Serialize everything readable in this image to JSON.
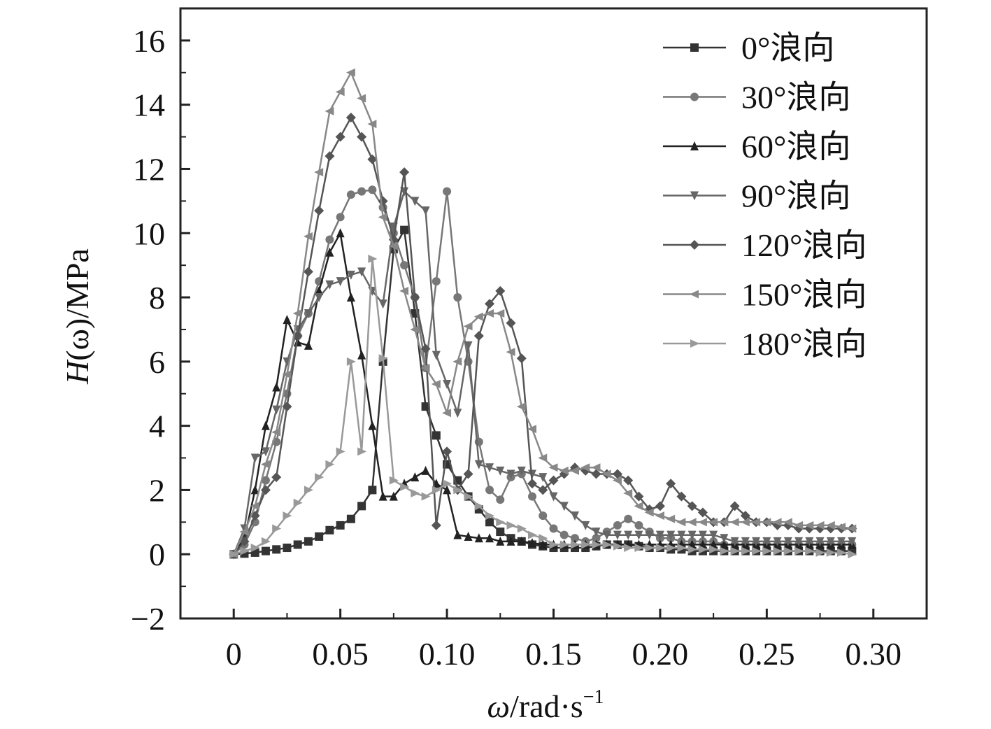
{
  "chart_data": {
    "type": "line",
    "title": "",
    "xlabel": {
      "symbol": "ω",
      "unit": "/rad·s",
      "exponent": "−1"
    },
    "ylabel": {
      "symbol": "H",
      "arg": "(ω)",
      "unit": "/MPa"
    },
    "xlim": [
      -0.025,
      0.325
    ],
    "ylim": [
      -2,
      17
    ],
    "xticks": [
      0,
      0.05,
      0.1,
      0.15,
      0.2,
      0.25,
      0.3
    ],
    "xtick_labels": [
      "0",
      "0.05",
      "0.10",
      "0.15",
      "0.20",
      "0.25",
      "0.30"
    ],
    "yticks": [
      -2,
      0,
      2,
      4,
      6,
      8,
      10,
      12,
      14,
      16
    ],
    "ytick_labels": [
      "−2",
      "0",
      "2",
      "4",
      "6",
      "8",
      "10",
      "12",
      "14",
      "16"
    ],
    "grid": false,
    "legend_position": "top-right",
    "series": [
      {
        "name": "0°浪向",
        "marker": "square",
        "color": "#333333",
        "x": [
          0,
          0.005,
          0.01,
          0.015,
          0.02,
          0.025,
          0.03,
          0.035,
          0.04,
          0.045,
          0.05,
          0.055,
          0.06,
          0.065,
          0.07,
          0.075,
          0.08,
          0.085,
          0.09,
          0.095,
          0.1,
          0.105,
          0.11,
          0.115,
          0.12,
          0.125,
          0.13,
          0.135,
          0.14,
          0.145,
          0.15,
          0.155,
          0.16,
          0.165,
          0.17,
          0.175,
          0.18,
          0.185,
          0.19,
          0.195,
          0.2,
          0.205,
          0.21,
          0.215,
          0.22,
          0.225,
          0.23,
          0.235,
          0.24,
          0.245,
          0.25,
          0.255,
          0.26,
          0.265,
          0.27,
          0.275,
          0.28,
          0.285,
          0.29
        ],
        "y": [
          0,
          0.02,
          0.05,
          0.1,
          0.15,
          0.2,
          0.3,
          0.4,
          0.55,
          0.75,
          0.9,
          1.1,
          1.5,
          2.0,
          6.0,
          9.5,
          10.1,
          7.5,
          4.6,
          3.7,
          2.8,
          2.3,
          1.8,
          1.4,
          1.0,
          0.7,
          0.5,
          0.4,
          0.3,
          0.25,
          0.2,
          0.2,
          0.2,
          0.2,
          0.25,
          0.3,
          0.3,
          0.3,
          0.25,
          0.2,
          0.2,
          0.15,
          0.15,
          0.1,
          0.1,
          0.1,
          0.1,
          0.1,
          0.1,
          0.1,
          0.1,
          0.1,
          0.1,
          0.1,
          0.1,
          0.1,
          0.1,
          0.1,
          0.1
        ]
      },
      {
        "name": "30°浪向",
        "marker": "circle",
        "color": "#777777",
        "x": [
          0,
          0.005,
          0.01,
          0.015,
          0.02,
          0.025,
          0.03,
          0.035,
          0.04,
          0.045,
          0.05,
          0.055,
          0.06,
          0.065,
          0.07,
          0.075,
          0.08,
          0.085,
          0.09,
          0.095,
          0.1,
          0.105,
          0.11,
          0.115,
          0.12,
          0.125,
          0.13,
          0.135,
          0.14,
          0.145,
          0.15,
          0.155,
          0.16,
          0.165,
          0.17,
          0.175,
          0.18,
          0.185,
          0.19,
          0.195,
          0.2,
          0.205,
          0.21,
          0.215,
          0.22,
          0.225,
          0.23,
          0.235,
          0.24,
          0.245,
          0.25,
          0.255,
          0.26,
          0.265,
          0.27,
          0.275,
          0.28,
          0.285,
          0.29
        ],
        "y": [
          0,
          0.3,
          1.0,
          2.3,
          3.5,
          5.0,
          6.8,
          7.5,
          8.5,
          9.8,
          10.5,
          11.2,
          11.3,
          11.35,
          10.8,
          10.0,
          9.0,
          8.0,
          5.8,
          8.5,
          11.3,
          8.0,
          6.0,
          3.5,
          2.0,
          1.7,
          2.4,
          2.5,
          1.8,
          1.2,
          0.8,
          0.6,
          0.5,
          0.4,
          0.5,
          0.7,
          0.9,
          1.1,
          0.9,
          0.7,
          0.5,
          0.5,
          0.4,
          0.4,
          0.4,
          0.4,
          0.3,
          0.3,
          0.3,
          0.3,
          0.3,
          0.3,
          0.3,
          0.3,
          0.3,
          0.3,
          0.3,
          0.3,
          0.3
        ]
      },
      {
        "name": "60°浪向",
        "marker": "triangle-up",
        "color": "#222222",
        "x": [
          0,
          0.005,
          0.01,
          0.015,
          0.02,
          0.025,
          0.03,
          0.035,
          0.04,
          0.045,
          0.05,
          0.055,
          0.06,
          0.065,
          0.07,
          0.075,
          0.08,
          0.085,
          0.09,
          0.095,
          0.1,
          0.105,
          0.11,
          0.115,
          0.12,
          0.125,
          0.13,
          0.135,
          0.14,
          0.145,
          0.15,
          0.155,
          0.16,
          0.165,
          0.17,
          0.175,
          0.18,
          0.185,
          0.19,
          0.195,
          0.2,
          0.205,
          0.21,
          0.215,
          0.22,
          0.225,
          0.23,
          0.235,
          0.24,
          0.245,
          0.25,
          0.255,
          0.26,
          0.265,
          0.27,
          0.275,
          0.28,
          0.285,
          0.29
        ],
        "y": [
          0,
          0.5,
          2.0,
          4.0,
          5.2,
          7.3,
          6.6,
          6.5,
          8.2,
          9.4,
          10.0,
          8.0,
          6.2,
          4.0,
          1.8,
          1.8,
          2.2,
          2.4,
          2.6,
          2.2,
          2.0,
          0.6,
          0.55,
          0.5,
          0.5,
          0.4,
          0.4,
          0.4,
          0.35,
          0.3,
          0.3,
          0.3,
          0.3,
          0.3,
          0.3,
          0.3,
          0.3,
          0.3,
          0.3,
          0.3,
          0.3,
          0.3,
          0.3,
          0.3,
          0.3,
          0.3,
          0.3,
          0.3,
          0.3,
          0.3,
          0.3,
          0.3,
          0.3,
          0.3,
          0.3,
          0.3,
          0.3,
          0.3,
          0.3
        ]
      },
      {
        "name": "90°浪向",
        "marker": "triangle-down",
        "color": "#666666",
        "x": [
          0,
          0.005,
          0.01,
          0.015,
          0.02,
          0.025,
          0.03,
          0.035,
          0.04,
          0.045,
          0.05,
          0.055,
          0.06,
          0.065,
          0.07,
          0.075,
          0.08,
          0.085,
          0.09,
          0.095,
          0.1,
          0.105,
          0.11,
          0.115,
          0.12,
          0.125,
          0.13,
          0.135,
          0.14,
          0.145,
          0.15,
          0.155,
          0.16,
          0.165,
          0.17,
          0.175,
          0.18,
          0.185,
          0.19,
          0.195,
          0.2,
          0.205,
          0.21,
          0.215,
          0.22,
          0.225,
          0.23,
          0.235,
          0.24,
          0.245,
          0.25,
          0.255,
          0.26,
          0.265,
          0.27,
          0.275,
          0.28,
          0.285,
          0.29
        ],
        "y": [
          0,
          0.8,
          3.0,
          3.2,
          4.5,
          6.0,
          7.0,
          7.5,
          8.0,
          8.4,
          8.5,
          8.7,
          8.8,
          8.2,
          7.8,
          10.2,
          11.3,
          11.0,
          10.7,
          6.2,
          5.3,
          4.4,
          6.5,
          2.8,
          2.7,
          2.6,
          2.5,
          2.6,
          2.5,
          2.4,
          1.8,
          1.5,
          1.2,
          0.9,
          0.7,
          0.6,
          0.6,
          0.6,
          0.6,
          0.6,
          0.6,
          0.6,
          0.6,
          0.6,
          0.6,
          0.6,
          0.5,
          0.4,
          0.4,
          0.4,
          0.4,
          0.4,
          0.4,
          0.4,
          0.4,
          0.4,
          0.4,
          0.4,
          0.4
        ]
      },
      {
        "name": "120°浪向",
        "marker": "diamond",
        "color": "#555555",
        "x": [
          0,
          0.005,
          0.01,
          0.015,
          0.02,
          0.025,
          0.03,
          0.035,
          0.04,
          0.045,
          0.05,
          0.055,
          0.06,
          0.065,
          0.07,
          0.075,
          0.08,
          0.085,
          0.09,
          0.095,
          0.1,
          0.105,
          0.11,
          0.115,
          0.12,
          0.125,
          0.13,
          0.135,
          0.14,
          0.145,
          0.15,
          0.155,
          0.16,
          0.165,
          0.17,
          0.175,
          0.18,
          0.185,
          0.19,
          0.195,
          0.2,
          0.205,
          0.21,
          0.215,
          0.22,
          0.225,
          0.23,
          0.235,
          0.24,
          0.245,
          0.25,
          0.255,
          0.26,
          0.265,
          0.27,
          0.275,
          0.28,
          0.285,
          0.29
        ],
        "y": [
          0,
          0.4,
          1.2,
          2.0,
          2.4,
          4.6,
          6.8,
          8.8,
          10.7,
          12.4,
          13.0,
          13.6,
          13.0,
          12.3,
          11.0,
          9.8,
          11.9,
          8.0,
          6.4,
          0.9,
          3.2,
          2.0,
          2.5,
          6.8,
          7.8,
          8.2,
          7.2,
          6.1,
          2.2,
          2.0,
          2.3,
          2.5,
          2.7,
          2.6,
          2.5,
          2.5,
          2.5,
          2.3,
          1.8,
          1.4,
          1.5,
          2.2,
          1.8,
          1.5,
          1.3,
          1.0,
          1.0,
          1.5,
          1.2,
          1.0,
          1.0,
          0.9,
          0.9,
          0.8,
          0.8,
          0.8,
          0.8,
          0.8,
          0.8
        ]
      },
      {
        "name": "150°浪向",
        "marker": "triangle-left",
        "color": "#888888",
        "x": [
          0,
          0.005,
          0.01,
          0.015,
          0.02,
          0.025,
          0.03,
          0.035,
          0.04,
          0.045,
          0.05,
          0.055,
          0.06,
          0.065,
          0.07,
          0.075,
          0.08,
          0.085,
          0.09,
          0.095,
          0.1,
          0.105,
          0.11,
          0.115,
          0.12,
          0.125,
          0.13,
          0.135,
          0.14,
          0.145,
          0.15,
          0.155,
          0.16,
          0.165,
          0.17,
          0.175,
          0.18,
          0.185,
          0.19,
          0.195,
          0.2,
          0.205,
          0.21,
          0.215,
          0.22,
          0.225,
          0.23,
          0.235,
          0.24,
          0.245,
          0.25,
          0.255,
          0.26,
          0.265,
          0.27,
          0.275,
          0.28,
          0.285,
          0.29
        ],
        "y": [
          0,
          0.7,
          1.5,
          2.8,
          3.8,
          5.6,
          7.5,
          9.9,
          11.9,
          13.8,
          14.4,
          15.0,
          14.2,
          13.4,
          10.5,
          9.6,
          8.2,
          7.0,
          5.8,
          5.3,
          4.4,
          6.0,
          7.1,
          7.4,
          7.5,
          7.5,
          6.3,
          4.6,
          3.9,
          3.0,
          2.7,
          2.6,
          2.6,
          2.7,
          2.7,
          2.5,
          2.3,
          1.9,
          1.5,
          1.3,
          1.2,
          1.1,
          1.0,
          1.0,
          1.0,
          1.0,
          1.0,
          1.0,
          1.0,
          1.0,
          1.0,
          1.0,
          1.0,
          0.9,
          0.9,
          0.9,
          0.9,
          0.85,
          0.8
        ]
      },
      {
        "name": "180°浪向",
        "marker": "triangle-right",
        "color": "#999999",
        "x": [
          0,
          0.005,
          0.01,
          0.015,
          0.02,
          0.025,
          0.03,
          0.035,
          0.04,
          0.045,
          0.05,
          0.055,
          0.06,
          0.065,
          0.07,
          0.075,
          0.08,
          0.085,
          0.09,
          0.095,
          0.1,
          0.105,
          0.11,
          0.115,
          0.12,
          0.125,
          0.13,
          0.135,
          0.14,
          0.145,
          0.15,
          0.155,
          0.16,
          0.165,
          0.17,
          0.175,
          0.18,
          0.185,
          0.19,
          0.195,
          0.2,
          0.205,
          0.21,
          0.215,
          0.22,
          0.225,
          0.23,
          0.235,
          0.24,
          0.245,
          0.25,
          0.255,
          0.26,
          0.265,
          0.27,
          0.275,
          0.28,
          0.285,
          0.29
        ],
        "y": [
          0,
          0.1,
          0.2,
          0.4,
          0.8,
          1.2,
          1.6,
          2.0,
          2.4,
          2.8,
          3.2,
          6.0,
          3.2,
          9.2,
          6.1,
          2.3,
          2.1,
          1.9,
          1.8,
          2.0,
          2.2,
          2.0,
          1.8,
          1.5,
          1.2,
          1.0,
          0.9,
          0.8,
          0.6,
          0.5,
          0.3,
          0.3,
          0.3,
          0.3,
          0.3,
          0.3,
          0.25,
          0.2,
          0.2,
          0.2,
          0.2,
          0.2,
          0.2,
          0.15,
          0.15,
          0.15,
          0.1,
          0.1,
          0.1,
          0.1,
          0.1,
          0.1,
          0.1,
          0.1,
          0.1,
          0.05,
          0.05,
          0.05,
          0.0
        ]
      }
    ]
  }
}
